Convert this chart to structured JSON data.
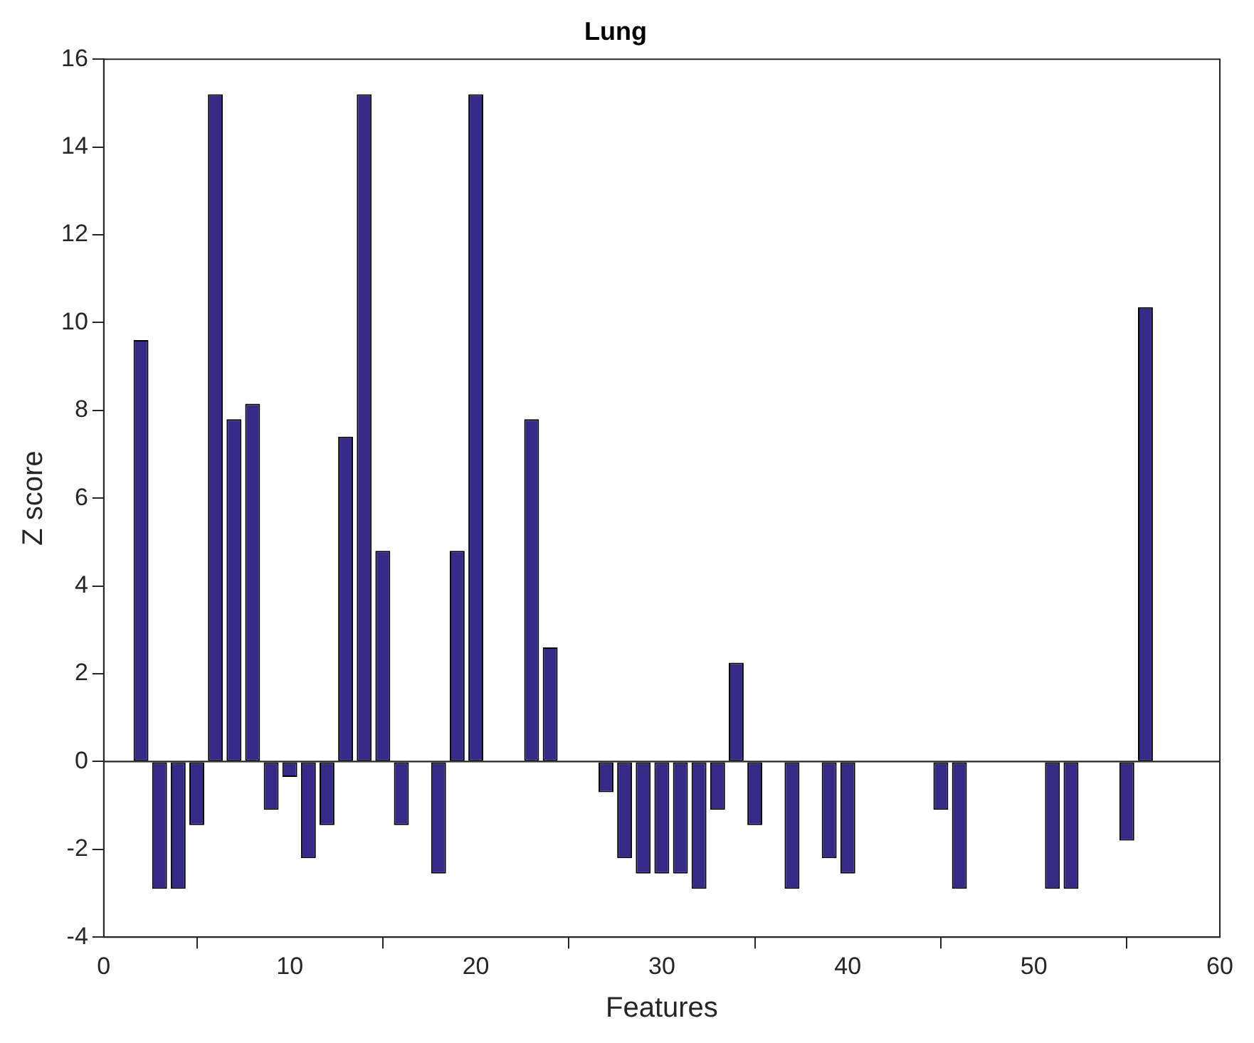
{
  "chart_data": {
    "type": "bar",
    "title": "Lung",
    "xlabel": "Features",
    "ylabel": "Z score",
    "x": [
      2,
      3,
      4,
      5,
      6,
      7,
      8,
      9,
      10,
      11,
      12,
      13,
      14,
      15,
      16,
      18,
      19,
      20,
      23,
      24,
      27,
      28,
      29,
      30,
      31,
      32,
      33,
      34,
      35,
      37,
      39,
      40,
      45,
      46,
      51,
      52,
      55,
      56
    ],
    "values": [
      9.6,
      -2.9,
      -2.9,
      -1.45,
      15.2,
      7.8,
      8.15,
      -1.1,
      -0.35,
      -2.2,
      -1.45,
      7.4,
      15.2,
      4.8,
      -1.45,
      -2.55,
      4.8,
      15.2,
      7.8,
      2.6,
      -0.7,
      -2.2,
      -2.55,
      -2.55,
      -2.55,
      -2.9,
      -1.1,
      2.25,
      -1.45,
      -2.9,
      -2.2,
      -2.55,
      -1.1,
      -2.9,
      -2.9,
      -2.9,
      -1.8,
      10.35
    ],
    "color": "#352a87",
    "xlim": [
      0,
      60
    ],
    "xticks": [
      0,
      10,
      20,
      30,
      40,
      50,
      60
    ],
    "ylim": [
      -4,
      16
    ],
    "yticks": [
      -4,
      -2,
      0,
      2,
      4,
      6,
      8,
      10,
      12,
      14,
      16
    ],
    "ref_lines": [
      {
        "axis": "y",
        "value": 0,
        "color": "#262626"
      }
    ],
    "grid": false,
    "legend": false
  }
}
